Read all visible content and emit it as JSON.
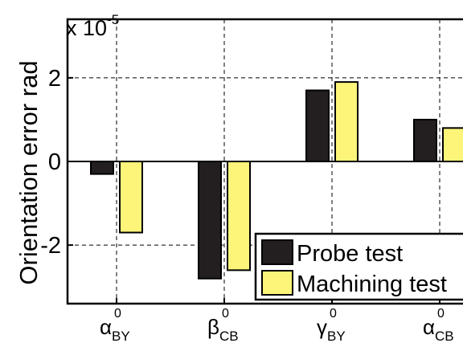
{
  "chart_data": {
    "type": "bar",
    "ylabel": "Orientation error rad",
    "scale_label": "x 10",
    "scale_exponent": "-5",
    "ylim": [
      -3.4,
      3.4
    ],
    "yticks": [
      -2,
      0,
      2
    ],
    "ytick_labels": [
      "-2",
      "0",
      "2"
    ],
    "grid": true,
    "legend_position": "bottom-right",
    "categories": [
      {
        "symbol": "α",
        "sup": "0",
        "sub": "BY"
      },
      {
        "symbol": "β",
        "sup": "0",
        "sub": "CB"
      },
      {
        "symbol": "γ",
        "sup": "0",
        "sub": "BY"
      },
      {
        "symbol": "α",
        "sup": "0",
        "sub": "CB"
      }
    ],
    "series": [
      {
        "name": "Probe test",
        "color": "#231f20",
        "values": [
          -0.3,
          -2.8,
          1.7,
          1.0
        ]
      },
      {
        "name": "Machining test",
        "color": "#fdf57a",
        "values": [
          -1.7,
          -2.6,
          1.9,
          0.8
        ]
      }
    ]
  }
}
